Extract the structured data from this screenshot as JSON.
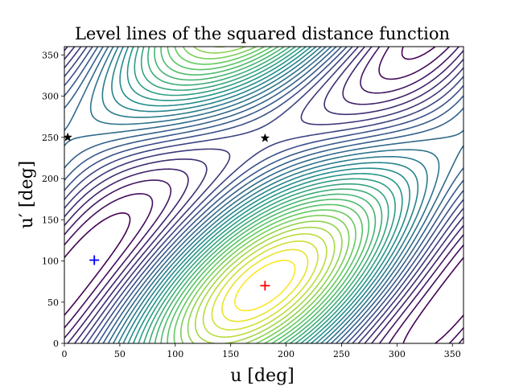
{
  "chart_data": {
    "type": "contour",
    "title": "Level lines of the squared distance function",
    "xlabel": "u [deg]",
    "ylabel": "u′ [deg]",
    "xlim": [
      0,
      360
    ],
    "ylim": [
      0,
      360
    ],
    "xticks": [
      "0",
      "50",
      "100",
      "150",
      "200",
      "250",
      "300",
      "350"
    ],
    "yticks": [
      "0",
      "50",
      "100",
      "150",
      "200",
      "250",
      "300",
      "350"
    ],
    "colormap": [
      "#440154",
      "#3b528b",
      "#21918c",
      "#5ec962",
      "#fde725"
    ],
    "contour_levels": 30,
    "markers": [
      {
        "symbol": "star",
        "color": "#000000",
        "x": 3,
        "y": 250
      },
      {
        "symbol": "star",
        "color": "#000000",
        "x": 181,
        "y": 249
      },
      {
        "symbol": "plus",
        "color": "#0000ff",
        "x": 27,
        "y": 101
      },
      {
        "symbol": "plus",
        "color": "#ff0000",
        "x": 181,
        "y": 70
      }
    ]
  }
}
